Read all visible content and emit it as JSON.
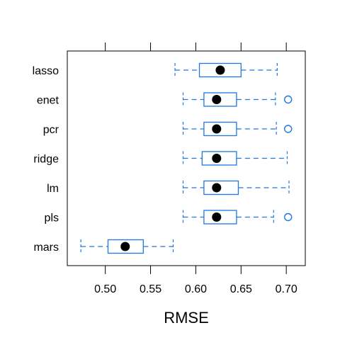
{
  "chart_data": {
    "type": "boxplot",
    "xlabel": "RMSE",
    "xlim": [
      0.458,
      0.721
    ],
    "xticks": [
      0.5,
      0.55,
      0.6,
      0.65,
      0.7
    ],
    "xtick_labels": [
      "0.50",
      "0.55",
      "0.60",
      "0.65",
      "0.70"
    ],
    "box_color": "#1f77e0",
    "median_color": "#000000",
    "categories": [
      "lasso",
      "enet",
      "pcr",
      "ridge",
      "lm",
      "pls",
      "mars"
    ],
    "boxes": [
      {
        "label": "lasso",
        "whisker_low": 0.577,
        "q1": 0.604,
        "median": 0.627,
        "q3": 0.65,
        "whisker_high": 0.69,
        "outliers": []
      },
      {
        "label": "enet",
        "whisker_low": 0.586,
        "q1": 0.609,
        "median": 0.623,
        "q3": 0.645,
        "whisker_high": 0.688,
        "outliers": [
          0.702
        ]
      },
      {
        "label": "pcr",
        "whisker_low": 0.586,
        "q1": 0.609,
        "median": 0.623,
        "q3": 0.645,
        "whisker_high": 0.689,
        "outliers": [
          0.702
        ]
      },
      {
        "label": "ridge",
        "whisker_low": 0.586,
        "q1": 0.607,
        "median": 0.623,
        "q3": 0.645,
        "whisker_high": 0.701,
        "outliers": []
      },
      {
        "label": "lm",
        "whisker_low": 0.586,
        "q1": 0.609,
        "median": 0.623,
        "q3": 0.647,
        "whisker_high": 0.703,
        "outliers": []
      },
      {
        "label": "pls",
        "whisker_low": 0.586,
        "q1": 0.609,
        "median": 0.623,
        "q3": 0.645,
        "whisker_high": 0.686,
        "outliers": [
          0.702
        ]
      },
      {
        "label": "mars",
        "whisker_low": 0.473,
        "q1": 0.503,
        "median": 0.522,
        "q3": 0.542,
        "whisker_high": 0.575,
        "outliers": []
      }
    ]
  }
}
